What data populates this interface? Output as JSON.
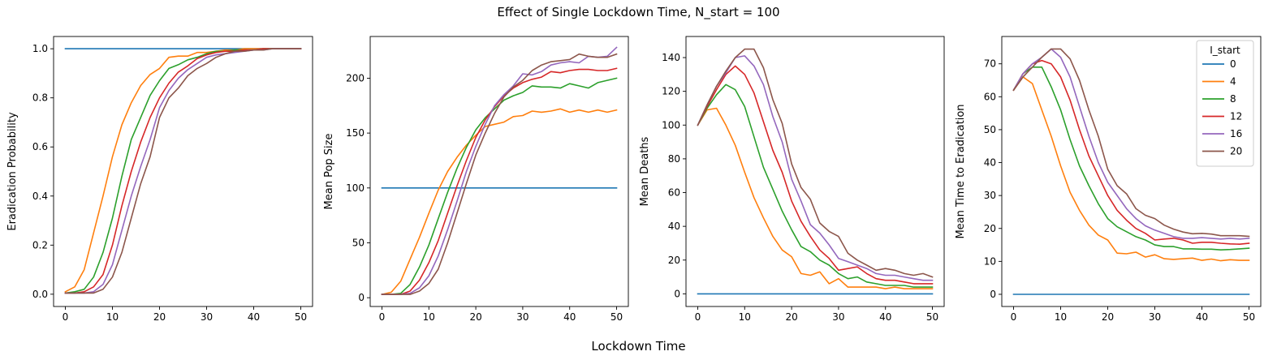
{
  "figure": {
    "suptitle": "Effect of Single Lockdown Time, N_start = 100",
    "supxlabel": "Lockdown Time"
  },
  "colors": {
    "series": [
      "#1f77b4",
      "#ff7f0e",
      "#2ca02c",
      "#d62728",
      "#9467bd",
      "#8c564b"
    ]
  },
  "chart_data": [
    {
      "type": "line",
      "ylabel": "Eradication Probability",
      "xlim": [
        -2.5,
        52.5
      ],
      "ylim": [
        -0.05,
        1.05
      ],
      "xticks": [
        0,
        10,
        20,
        30,
        40,
        50
      ],
      "yticks": [
        0.0,
        0.2,
        0.4,
        0.6,
        0.8,
        1.0
      ],
      "ytick_labels": [
        "0.0",
        "0.2",
        "0.4",
        "0.6",
        "0.8",
        "1.0"
      ],
      "x": [
        0,
        2,
        4,
        6,
        8,
        10,
        12,
        14,
        16,
        18,
        20,
        22,
        24,
        26,
        28,
        30,
        32,
        34,
        36,
        38,
        40,
        42,
        44,
        46,
        48,
        50
      ],
      "series": [
        {
          "name": "0",
          "values": [
            1,
            1,
            1,
            1,
            1,
            1,
            1,
            1,
            1,
            1,
            1,
            1,
            1,
            1,
            1,
            1,
            1,
            1,
            1,
            1,
            1,
            1,
            1,
            1,
            1,
            1
          ]
        },
        {
          "name": "4",
          "values": [
            0.01,
            0.03,
            0.1,
            0.25,
            0.4,
            0.56,
            0.69,
            0.78,
            0.85,
            0.895,
            0.92,
            0.965,
            0.97,
            0.97,
            0.985,
            0.985,
            0.99,
            0.995,
            0.995,
            1,
            1,
            1,
            1,
            1,
            1,
            1
          ]
        },
        {
          "name": "8",
          "values": [
            0.005,
            0.01,
            0.02,
            0.07,
            0.17,
            0.31,
            0.48,
            0.63,
            0.72,
            0.81,
            0.87,
            0.92,
            0.935,
            0.955,
            0.965,
            0.98,
            0.99,
            0.99,
            0.995,
            0.995,
            0.995,
            1,
            1,
            1,
            1,
            1
          ]
        },
        {
          "name": "12",
          "values": [
            0.005,
            0.005,
            0.01,
            0.03,
            0.08,
            0.2,
            0.36,
            0.5,
            0.62,
            0.72,
            0.8,
            0.86,
            0.905,
            0.93,
            0.96,
            0.975,
            0.985,
            0.99,
            0.99,
            0.995,
            0.995,
            1,
            1,
            1,
            1,
            1
          ]
        },
        {
          "name": "16",
          "values": [
            0.005,
            0.005,
            0.005,
            0.01,
            0.04,
            0.12,
            0.26,
            0.4,
            0.52,
            0.63,
            0.76,
            0.83,
            0.88,
            0.915,
            0.94,
            0.965,
            0.975,
            0.98,
            0.985,
            0.99,
            0.995,
            0.995,
            1,
            1,
            1,
            1
          ]
        },
        {
          "name": "20",
          "values": [
            0.005,
            0.005,
            0.005,
            0.005,
            0.02,
            0.07,
            0.17,
            0.31,
            0.45,
            0.56,
            0.72,
            0.8,
            0.84,
            0.89,
            0.92,
            0.94,
            0.965,
            0.98,
            0.99,
            0.99,
            0.995,
            0.995,
            1,
            1,
            1,
            1
          ]
        }
      ]
    },
    {
      "type": "line",
      "ylabel": "Mean Pop Size",
      "xlim": [
        -2.5,
        52.5
      ],
      "ylim": [
        -8,
        238
      ],
      "xticks": [
        0,
        10,
        20,
        30,
        40,
        50
      ],
      "yticks": [
        0,
        50,
        100,
        150,
        200
      ],
      "ytick_labels": [
        "0",
        "50",
        "100",
        "150",
        "200"
      ],
      "x": [
        0,
        2,
        4,
        6,
        8,
        10,
        12,
        14,
        16,
        18,
        20,
        22,
        24,
        26,
        28,
        30,
        32,
        34,
        36,
        38,
        40,
        42,
        44,
        46,
        48,
        50
      ],
      "series": [
        {
          "name": "0",
          "values": [
            100,
            100,
            100,
            100,
            100,
            100,
            100,
            100,
            100,
            100,
            100,
            100,
            100,
            100,
            100,
            100,
            100,
            100,
            100,
            100,
            100,
            100,
            100,
            100,
            100,
            100
          ]
        },
        {
          "name": "4",
          "values": [
            3,
            5,
            15,
            35,
            55,
            77,
            98,
            115,
            128,
            139,
            148,
            156,
            158,
            160,
            165,
            166,
            170,
            169,
            170,
            172,
            169,
            171,
            169,
            171,
            169,
            171
          ]
        },
        {
          "name": "8",
          "values": [
            3,
            3,
            4,
            12,
            28,
            48,
            72,
            96,
            118,
            137,
            153,
            164,
            172,
            180,
            184,
            187,
            193,
            192,
            192,
            191,
            195,
            193,
            191,
            196,
            198,
            200
          ]
        },
        {
          "name": "12",
          "values": [
            3,
            3,
            3,
            6,
            16,
            32,
            52,
            77,
            102,
            125,
            146,
            162,
            174,
            184,
            191,
            196,
            199,
            201,
            206,
            205,
            207,
            208,
            208,
            207,
            207,
            209
          ]
        },
        {
          "name": "16",
          "values": [
            3,
            3,
            3,
            4,
            9,
            20,
            38,
            62,
            88,
            115,
            138,
            158,
            175,
            185,
            193,
            204,
            203,
            206,
            212,
            214,
            215,
            214,
            220,
            219,
            220,
            228
          ]
        },
        {
          "name": "20",
          "values": [
            3,
            3,
            3,
            3,
            6,
            13,
            26,
            50,
            77,
            104,
            130,
            150,
            168,
            183,
            192,
            198,
            207,
            212,
            215,
            216,
            217,
            222,
            220,
            219,
            219,
            222
          ]
        }
      ]
    },
    {
      "type": "line",
      "ylabel": "Mean Deaths",
      "xlim": [
        -2.5,
        52.5
      ],
      "ylim": [
        -7.5,
        152.5
      ],
      "xticks": [
        0,
        10,
        20,
        30,
        40,
        50
      ],
      "yticks": [
        0,
        20,
        40,
        60,
        80,
        100,
        120,
        140
      ],
      "ytick_labels": [
        "0",
        "20",
        "40",
        "60",
        "80",
        "100",
        "120",
        "140"
      ],
      "x": [
        0,
        2,
        4,
        6,
        8,
        10,
        12,
        14,
        16,
        18,
        20,
        22,
        24,
        26,
        28,
        30,
        32,
        34,
        36,
        38,
        40,
        42,
        44,
        46,
        48,
        50
      ],
      "series": [
        {
          "name": "0",
          "values": [
            0,
            0,
            0,
            0,
            0,
            0,
            0,
            0,
            0,
            0,
            0,
            0,
            0,
            0,
            0,
            0,
            0,
            0,
            0,
            0,
            0,
            0,
            0,
            0,
            0,
            0
          ]
        },
        {
          "name": "4",
          "values": [
            100,
            109,
            110,
            100,
            88,
            72,
            57,
            45,
            34,
            26,
            22,
            12,
            11,
            13,
            6,
            9,
            4,
            4,
            4,
            4,
            3,
            4,
            3,
            3,
            3,
            3
          ]
        },
        {
          "name": "8",
          "values": [
            100,
            110,
            118,
            124,
            121,
            111,
            93,
            75,
            62,
            49,
            38,
            28,
            25,
            20,
            17,
            12,
            9,
            10,
            7,
            6,
            5,
            5,
            5,
            4,
            4,
            4
          ]
        },
        {
          "name": "12",
          "values": [
            100,
            111,
            121,
            130,
            135,
            130,
            119,
            102,
            85,
            72,
            55,
            43,
            34,
            26,
            21,
            14,
            15,
            16,
            12,
            9,
            8,
            8,
            7,
            6,
            6,
            6
          ]
        },
        {
          "name": "16",
          "values": [
            100,
            112,
            123,
            131,
            140,
            141,
            135,
            124,
            105,
            90,
            68,
            55,
            41,
            36,
            29,
            21,
            19,
            17,
            15,
            12,
            11,
            11,
            10,
            9,
            8,
            8
          ]
        },
        {
          "name": "20",
          "values": [
            100,
            112,
            123,
            132,
            140,
            145,
            145,
            134,
            115,
            101,
            77,
            63,
            56,
            42,
            37,
            34,
            24,
            20,
            17,
            14,
            15,
            14,
            12,
            11,
            12,
            10
          ]
        }
      ]
    },
    {
      "type": "line",
      "ylabel": "Mean Time to Eradication",
      "xlim": [
        -2.5,
        52.5
      ],
      "ylim": [
        -3.7,
        78.3
      ],
      "xticks": [
        0,
        10,
        20,
        30,
        40,
        50
      ],
      "yticks": [
        0,
        10,
        20,
        30,
        40,
        50,
        60,
        70
      ],
      "ytick_labels": [
        "0",
        "10",
        "20",
        "30",
        "40",
        "50",
        "60",
        "70"
      ],
      "legend": {
        "title": "I_start",
        "placement": "top-right"
      },
      "x": [
        0,
        2,
        4,
        6,
        8,
        10,
        12,
        14,
        16,
        18,
        20,
        22,
        24,
        26,
        28,
        30,
        32,
        34,
        36,
        38,
        40,
        42,
        44,
        46,
        48,
        50
      ],
      "series": [
        {
          "name": "0",
          "values": [
            0,
            0,
            0,
            0,
            0,
            0,
            0,
            0,
            0,
            0,
            0,
            0,
            0,
            0,
            0,
            0,
            0,
            0,
            0,
            0,
            0,
            0,
            0,
            0,
            0,
            0
          ]
        },
        {
          "name": "4",
          "values": [
            62,
            66,
            64,
            56,
            48,
            39,
            31,
            25.5,
            21,
            18,
            16.5,
            12.5,
            12.3,
            12.8,
            11.3,
            12,
            10.8,
            10.6,
            10.8,
            11,
            10.3,
            10.7,
            10.2,
            10.5,
            10.3,
            10.3
          ]
        },
        {
          "name": "8",
          "values": [
            62,
            67,
            69,
            69,
            63,
            56,
            47,
            39,
            33,
            27.5,
            23,
            20.5,
            19,
            17.5,
            16.5,
            15,
            14.5,
            14.5,
            13.8,
            13.8,
            13.7,
            13.7,
            13.5,
            13.6,
            13.8,
            14
          ]
        },
        {
          "name": "12",
          "values": [
            62,
            67,
            70,
            71,
            70,
            66,
            59,
            50,
            42,
            36,
            30,
            25.5,
            22.5,
            20,
            18.5,
            16.5,
            16.8,
            17,
            16.5,
            15.5,
            15.8,
            15.8,
            15.5,
            15.3,
            15.2,
            15.5
          ]
        },
        {
          "name": "16",
          "values": [
            62,
            67,
            70,
            72,
            74.5,
            72,
            66,
            57,
            48,
            40,
            34,
            30,
            26,
            23,
            20.8,
            19.5,
            18.5,
            17.5,
            17,
            17,
            17.2,
            17,
            16.8,
            17,
            16.8,
            17
          ]
        },
        {
          "name": "20",
          "values": [
            62,
            66,
            69,
            72,
            74.5,
            74.5,
            71.5,
            65,
            56,
            48,
            38,
            33,
            30.5,
            26,
            24,
            23,
            21,
            19.8,
            18.9,
            18.4,
            18.5,
            18.3,
            17.8,
            17.8,
            17.8,
            17.6
          ]
        }
      ]
    }
  ]
}
